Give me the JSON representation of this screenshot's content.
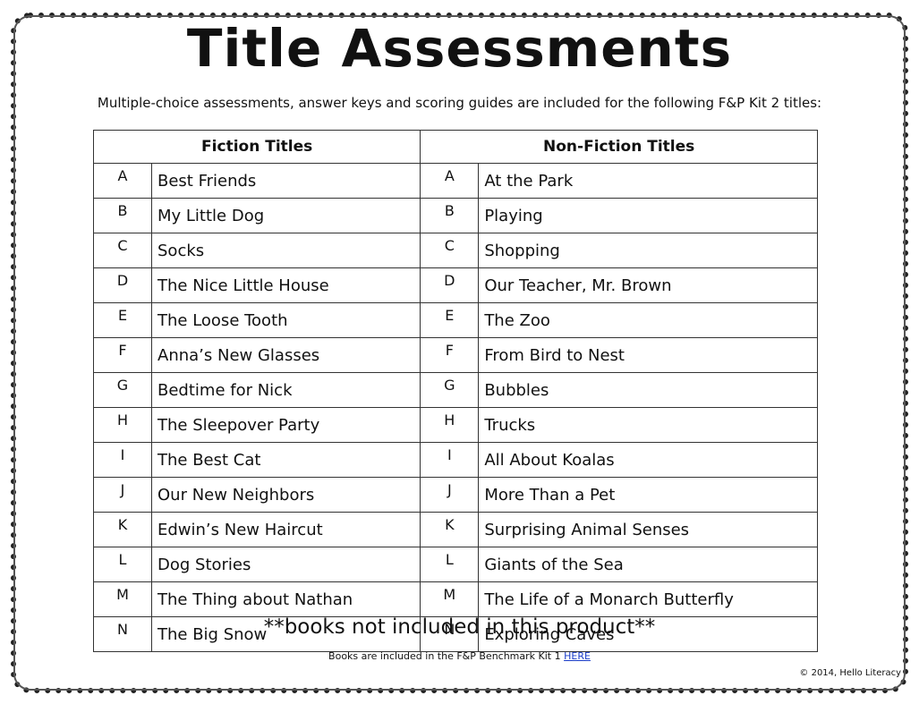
{
  "header": {
    "title": "Title Assessments",
    "subtitle": "Multiple-choice assessments, answer keys and scoring guides are included for the following F&P Kit 2 titles:"
  },
  "table": {
    "headers": [
      "Fiction Titles",
      "Non-Fiction Titles"
    ],
    "rows": [
      [
        "A",
        "Best Friends",
        "A",
        "At the Park"
      ],
      [
        "B",
        "My Little Dog",
        "B",
        "Playing"
      ],
      [
        "C",
        "Socks",
        "C",
        "Shopping"
      ],
      [
        "D",
        "The Nice Little House",
        "D",
        "Our Teacher, Mr. Brown"
      ],
      [
        "E",
        "The Loose Tooth",
        "E",
        "The Zoo"
      ],
      [
        "F",
        "Anna’s New Glasses",
        "F",
        "From Bird to Nest"
      ],
      [
        "G",
        "Bedtime for Nick",
        "G",
        "Bubbles"
      ],
      [
        "H",
        "The Sleepover Party",
        "H",
        "Trucks"
      ],
      [
        "I",
        "The Best Cat",
        "I",
        "All About Koalas"
      ],
      [
        "J",
        "Our New Neighbors",
        "J",
        "More Than a Pet"
      ],
      [
        "K",
        "Edwin’s New Haircut",
        "K",
        "Surprising Animal Senses"
      ],
      [
        "L",
        "Dog Stories",
        "L",
        "Giants of the Sea"
      ],
      [
        "M",
        "The Thing about Nathan",
        "M",
        "The Life of a Monarch Butterfly"
      ],
      [
        "N",
        "The Big Snow",
        "N",
        "Exploring Caves"
      ]
    ]
  },
  "footer": {
    "notice": "**books not included in this product**",
    "note": "Books are included in the F&P Benchmark  Kit 1",
    "link": "HERE",
    "copyright": "© 2014, Hello Literacy"
  }
}
